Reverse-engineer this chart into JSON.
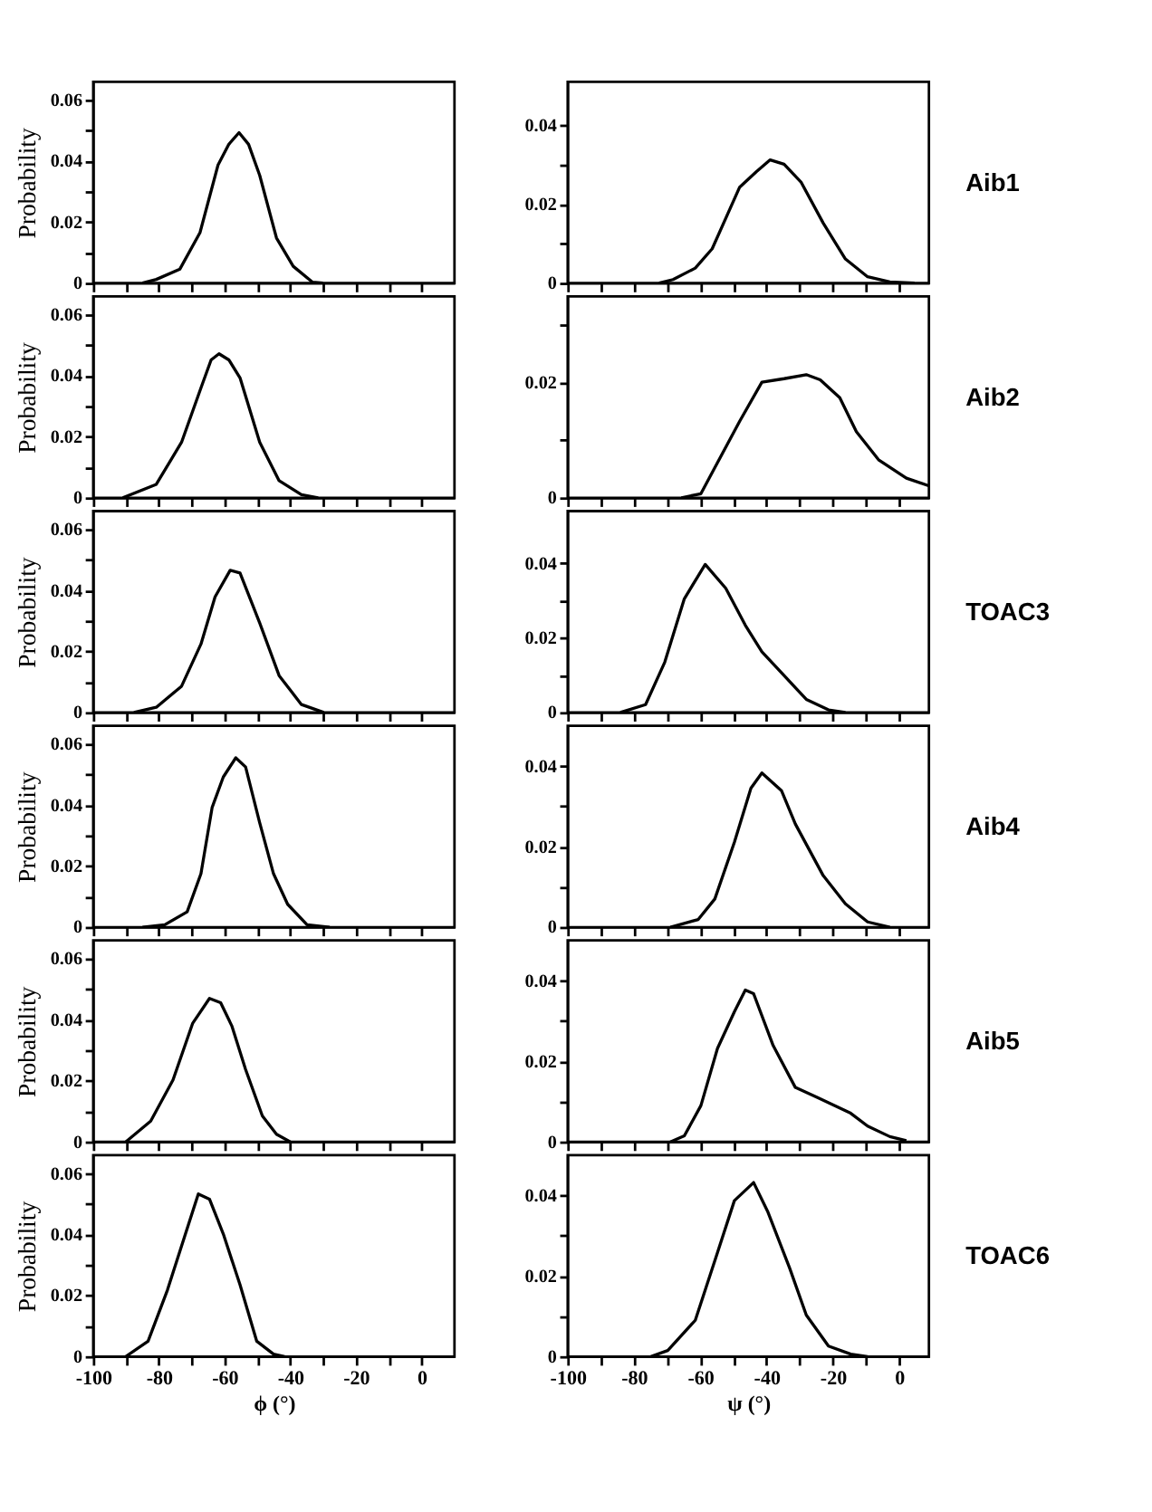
{
  "chart_data": [
    {
      "type": "line",
      "ylabel": "Probability",
      "tick_labels": "y",
      "xlim": [
        -100,
        10
      ],
      "xticks": [
        -100,
        {
          "value": -90,
          "label": null
        },
        -80,
        {
          "value": -70,
          "label": null
        },
        -60,
        {
          "value": -50,
          "label": null
        },
        -40,
        {
          "value": -30,
          "label": null
        },
        -20,
        {
          "value": -10,
          "label": null
        },
        0
      ],
      "ylim": [
        0,
        0.066
      ],
      "yticks": [
        0,
        {
          "value": 0.01,
          "label": null
        },
        0.02,
        {
          "value": 0.03,
          "label": null
        },
        0.04,
        {
          "value": 0.05,
          "label": null
        },
        0.06
      ],
      "grid": false,
      "series": [
        {
          "color": "#000000",
          "x": [
            -85,
            -80.8,
            -73.6,
            -67.5,
            -62,
            -58.7,
            -55.6,
            -52.7,
            -49.3,
            -44.2,
            -39.1,
            -33.2,
            -30
          ],
          "values": [
            0,
            0.0012,
            0.0046,
            0.0165,
            0.0387,
            0.0455,
            0.0493,
            0.0455,
            0.0353,
            0.0148,
            0.0055,
            0.0003,
            0
          ]
        }
      ]
    },
    {
      "type": "line",
      "annotations": [
        "Aib1"
      ],
      "tick_labels": "y",
      "xlim": [
        -100,
        9
      ],
      "xticks": [
        -100,
        {
          "value": -90,
          "label": null
        },
        -80,
        {
          "value": -70,
          "label": null
        },
        -60,
        {
          "value": -50,
          "label": null
        },
        -40,
        {
          "value": -30,
          "label": null
        },
        -20,
        {
          "value": -10,
          "label": null
        },
        0
      ],
      "ylim": [
        0,
        0.051
      ],
      "yticks": [
        0,
        {
          "value": 0.01,
          "label": null
        },
        0.02,
        {
          "value": 0.03,
          "label": null
        },
        0.04
      ],
      "grid": false,
      "series": [
        {
          "color": "#000000",
          "x": [
            -72.4,
            -68.2,
            -61.5,
            -56.4,
            -48.1,
            -43.1,
            -38.9,
            -34.7,
            -29.6,
            -22.9,
            -16.2,
            -9.5,
            -2.8,
            4.7
          ],
          "values": [
            0,
            0.0009,
            0.0038,
            0.0087,
            0.0243,
            0.0282,
            0.0312,
            0.0301,
            0.0256,
            0.0152,
            0.0061,
            0.0016,
            0.0003,
            0
          ]
        }
      ]
    },
    {
      "type": "line",
      "ylabel": "Probability",
      "tick_labels": "y",
      "xlim": [
        -100,
        10
      ],
      "xticks": [
        -100,
        {
          "value": -90,
          "label": null
        },
        -80,
        {
          "value": -70,
          "label": null
        },
        -60,
        {
          "value": -50,
          "label": null
        },
        -40,
        {
          "value": -30,
          "label": null
        },
        -20,
        {
          "value": -10,
          "label": null
        },
        0
      ],
      "ylim": [
        0,
        0.066
      ],
      "yticks": [
        0,
        {
          "value": 0.01,
          "label": null
        },
        0.02,
        {
          "value": 0.03,
          "label": null
        },
        0.04,
        {
          "value": 0.05,
          "label": null
        },
        0.06
      ],
      "grid": false,
      "series": [
        {
          "color": "#000000",
          "x": [
            -91,
            -80.8,
            -73.1,
            -67.2,
            -64.1,
            -61.7,
            -58.7,
            -55.3,
            -49.3,
            -43.4,
            -36.6,
            -31.5
          ],
          "values": [
            0,
            0.0044,
            0.0182,
            0.036,
            0.0452,
            0.0472,
            0.0452,
            0.0393,
            0.0182,
            0.0056,
            0.001,
            0
          ]
        }
      ]
    },
    {
      "type": "line",
      "annotations": [
        "Aib2"
      ],
      "tick_labels": "y",
      "xlim": [
        -100,
        9
      ],
      "xticks": [
        -100,
        {
          "value": -90,
          "label": null
        },
        -80,
        {
          "value": -70,
          "label": null
        },
        -60,
        {
          "value": -50,
          "label": null
        },
        -40,
        {
          "value": -30,
          "label": null
        },
        -20,
        {
          "value": -10,
          "label": null
        },
        0
      ],
      "ylim": [
        0,
        0.035
      ],
      "yticks": [
        0,
        {
          "value": 0.01,
          "label": null
        },
        0.02,
        {
          "value": 0.03,
          "label": null
        }
      ],
      "grid": false,
      "series": [
        {
          "color": "#000000",
          "x": [
            -65.7,
            -59.8,
            -54.8,
            -48.1,
            -41.4,
            -34.7,
            -28,
            -23.8,
            -17.9,
            -12.9,
            -6.2,
            2.2,
            8.9
          ],
          "values": [
            0,
            0.0007,
            0.0061,
            0.0133,
            0.0201,
            0.0207,
            0.0214,
            0.0205,
            0.0174,
            0.0115,
            0.0066,
            0.0034,
            0.0021
          ]
        }
      ]
    },
    {
      "type": "line",
      "ylabel": "Probability",
      "tick_labels": "y",
      "xlim": [
        -100,
        10
      ],
      "xticks": [
        -100,
        {
          "value": -90,
          "label": null
        },
        -80,
        {
          "value": -70,
          "label": null
        },
        -60,
        {
          "value": -50,
          "label": null
        },
        -40,
        {
          "value": -30,
          "label": null
        },
        -20,
        {
          "value": -10,
          "label": null
        },
        0
      ],
      "ylim": [
        0,
        0.066
      ],
      "yticks": [
        0,
        {
          "value": 0.01,
          "label": null
        },
        0.02,
        {
          "value": 0.03,
          "label": null
        },
        0.04,
        {
          "value": 0.05,
          "label": null
        },
        0.06
      ],
      "grid": false,
      "series": [
        {
          "color": "#000000",
          "x": [
            -87.6,
            -80.8,
            -73.1,
            -67.2,
            -62.9,
            -58.3,
            -55.3,
            -49.3,
            -43.4,
            -36.6,
            -29.8
          ],
          "values": [
            0,
            0.0017,
            0.0086,
            0.0224,
            0.0379,
            0.0466,
            0.0457,
            0.0293,
            0.0121,
            0.0026,
            0
          ]
        }
      ]
    },
    {
      "type": "line",
      "annotations": [
        "TOAC3"
      ],
      "tick_labels": "y",
      "xlim": [
        -100,
        9
      ],
      "xticks": [
        -100,
        {
          "value": -90,
          "label": null
        },
        -80,
        {
          "value": -70,
          "label": null
        },
        -60,
        {
          "value": -50,
          "label": null
        },
        -40,
        {
          "value": -30,
          "label": null
        },
        -20,
        {
          "value": -10,
          "label": null
        },
        0
      ],
      "ylim": [
        0,
        0.054
      ],
      "yticks": [
        0,
        {
          "value": 0.01,
          "label": null
        },
        0.02,
        {
          "value": 0.03,
          "label": null
        },
        0.04
      ],
      "grid": false,
      "series": [
        {
          "color": "#000000",
          "x": [
            -84.1,
            -76.5,
            -70.7,
            -64.8,
            -58.5,
            -52.3,
            -46.4,
            -41.4,
            -34.7,
            -28,
            -21.3,
            -16.2
          ],
          "values": [
            0,
            0.0021,
            0.0135,
            0.0305,
            0.0397,
            0.0333,
            0.0234,
            0.0163,
            0.0099,
            0.0035,
            0.0007,
            0
          ]
        }
      ]
    },
    {
      "type": "line",
      "ylabel": "Probability",
      "tick_labels": "y",
      "xlim": [
        -100,
        10
      ],
      "xticks": [
        -100,
        {
          "value": -90,
          "label": null
        },
        -80,
        {
          "value": -70,
          "label": null
        },
        -60,
        {
          "value": -50,
          "label": null
        },
        -40,
        {
          "value": -30,
          "label": null
        },
        -20,
        {
          "value": -10,
          "label": null
        },
        0
      ],
      "ylim": [
        0,
        0.066
      ],
      "yticks": [
        0,
        {
          "value": 0.01,
          "label": null
        },
        0.02,
        {
          "value": 0.03,
          "label": null
        },
        0.04,
        {
          "value": 0.05,
          "label": null
        },
        0.06
      ],
      "grid": false,
      "series": [
        {
          "color": "#000000",
          "x": [
            -85,
            -78.2,
            -71.4,
            -67.2,
            -63.8,
            -60.4,
            -56.6,
            -53.6,
            -49.3,
            -45.1,
            -40.8,
            -34.9,
            -28
          ],
          "values": [
            0,
            0.0008,
            0.005,
            0.0175,
            0.0392,
            0.0492,
            0.0555,
            0.0525,
            0.0342,
            0.0175,
            0.0075,
            0.0008,
            0
          ]
        }
      ]
    },
    {
      "type": "line",
      "annotations": [
        "Aib4"
      ],
      "tick_labels": "y",
      "xlim": [
        -100,
        9
      ],
      "xticks": [
        -100,
        {
          "value": -90,
          "label": null
        },
        -80,
        {
          "value": -70,
          "label": null
        },
        -60,
        {
          "value": -50,
          "label": null
        },
        -40,
        {
          "value": -30,
          "label": null
        },
        -20,
        {
          "value": -10,
          "label": null
        },
        0
      ],
      "ylim": [
        0,
        0.05
      ],
      "yticks": [
        0,
        {
          "value": 0.01,
          "label": null
        },
        0.02,
        {
          "value": 0.03,
          "label": null
        },
        0.04
      ],
      "grid": false,
      "series": [
        {
          "color": "#000000",
          "x": [
            -69,
            -60.6,
            -55.6,
            -49.7,
            -44.7,
            -41.4,
            -35.5,
            -31.3,
            -22.9,
            -16.2,
            -9.5,
            -2.8
          ],
          "values": [
            0,
            0.0019,
            0.007,
            0.0211,
            0.0345,
            0.0383,
            0.0339,
            0.0256,
            0.0128,
            0.0058,
            0.0013,
            0
          ]
        }
      ]
    },
    {
      "type": "line",
      "ylabel": "Probability",
      "tick_labels": "y",
      "xlim": [
        -100,
        10
      ],
      "xticks": [
        -100,
        {
          "value": -90,
          "label": null
        },
        -80,
        {
          "value": -70,
          "label": null
        },
        -60,
        {
          "value": -50,
          "label": null
        },
        -40,
        {
          "value": -30,
          "label": null
        },
        -20,
        {
          "value": -10,
          "label": null
        },
        0
      ],
      "ylim": [
        0,
        0.066
      ],
      "yticks": [
        0,
        {
          "value": 0.01,
          "label": null
        },
        0.02,
        {
          "value": 0.03,
          "label": null
        },
        0.04,
        {
          "value": 0.05,
          "label": null
        },
        0.06
      ],
      "grid": false,
      "series": [
        {
          "color": "#000000",
          "x": [
            -90.1,
            -82.5,
            -75.7,
            -69.7,
            -64.6,
            -61.2,
            -57.8,
            -53.6,
            -48.5,
            -44.2,
            -40
          ],
          "values": [
            0,
            0.0068,
            0.0203,
            0.0389,
            0.047,
            0.0456,
            0.038,
            0.0237,
            0.0085,
            0.0025,
            0
          ]
        }
      ]
    },
    {
      "type": "line",
      "annotations": [
        "Aib5"
      ],
      "tick_labels": "y",
      "xlim": [
        -100,
        9
      ],
      "xticks": [
        -100,
        {
          "value": -90,
          "label": null
        },
        -80,
        {
          "value": -70,
          "label": null
        },
        -60,
        {
          "value": -50,
          "label": null
        },
        -40,
        {
          "value": -30,
          "label": null
        },
        -20,
        {
          "value": -10,
          "label": null
        },
        0
      ],
      "ylim": [
        0,
        0.05
      ],
      "yticks": [
        0,
        {
          "value": 0.01,
          "label": null
        },
        0.02,
        {
          "value": 0.03,
          "label": null
        },
        0.04
      ],
      "grid": false,
      "series": [
        {
          "color": "#000000",
          "x": [
            -69,
            -64.8,
            -59.8,
            -54.8,
            -49.7,
            -46.4,
            -43.9,
            -38,
            -31.3,
            -24.6,
            -14.6,
            -9.5,
            -2.8,
            2.2
          ],
          "values": [
            0,
            0.0015,
            0.009,
            0.0232,
            0.0323,
            0.0377,
            0.0368,
            0.0239,
            0.0135,
            0.011,
            0.0071,
            0.0039,
            0.0013,
            0.0003
          ]
        }
      ]
    },
    {
      "type": "line",
      "ylabel": "Probability",
      "xlabel": "ϕ (°)",
      "xlim": [
        -100,
        10
      ],
      "xticks": [
        -100,
        {
          "value": -90,
          "label": null
        },
        -80,
        {
          "value": -70,
          "label": null
        },
        -60,
        {
          "value": -50,
          "label": null
        },
        -40,
        {
          "value": -30,
          "label": null
        },
        -20,
        {
          "value": -10,
          "label": null
        },
        0
      ],
      "ylim": [
        0,
        0.066
      ],
      "yticks": [
        0,
        {
          "value": 0.01,
          "label": null
        },
        0.02,
        {
          "value": 0.03,
          "label": null
        },
        0.04,
        {
          "value": 0.05,
          "label": null
        },
        0.06
      ],
      "grid": false,
      "series": [
        {
          "color": "#000000",
          "x": [
            -90.1,
            -83.3,
            -77.4,
            -71.4,
            -68,
            -64.6,
            -60.4,
            -55.3,
            -50.2,
            -45.1,
            -41.7
          ],
          "values": [
            0,
            0.005,
            0.0218,
            0.0419,
            0.0533,
            0.0516,
            0.0402,
            0.0235,
            0.005,
            0.0008,
            0
          ]
        }
      ]
    },
    {
      "type": "line",
      "annotations": [
        "TOAC6"
      ],
      "xlabel": "ψ (°)",
      "xlim": [
        -100,
        9
      ],
      "xticks": [
        -100,
        {
          "value": -90,
          "label": null
        },
        -80,
        {
          "value": -70,
          "label": null
        },
        -60,
        {
          "value": -50,
          "label": null
        },
        -40,
        {
          "value": -30,
          "label": null
        },
        -20,
        {
          "value": -10,
          "label": null
        },
        0
      ],
      "ylim": [
        0,
        0.05
      ],
      "yticks": [
        0,
        {
          "value": 0.01,
          "label": null
        },
        0.02,
        {
          "value": 0.03,
          "label": null
        },
        0.04
      ],
      "grid": false,
      "series": [
        {
          "color": "#000000",
          "x": [
            -74.9,
            -69.8,
            -61.5,
            -54.8,
            -49.7,
            -43.9,
            -39.7,
            -33,
            -28,
            -21.3,
            -14.6,
            -9.5
          ],
          "values": [
            0,
            0.0015,
            0.009,
            0.0258,
            0.0387,
            0.0432,
            0.0361,
            0.0219,
            0.0103,
            0.0026,
            0.0006,
            0
          ]
        }
      ]
    }
  ]
}
